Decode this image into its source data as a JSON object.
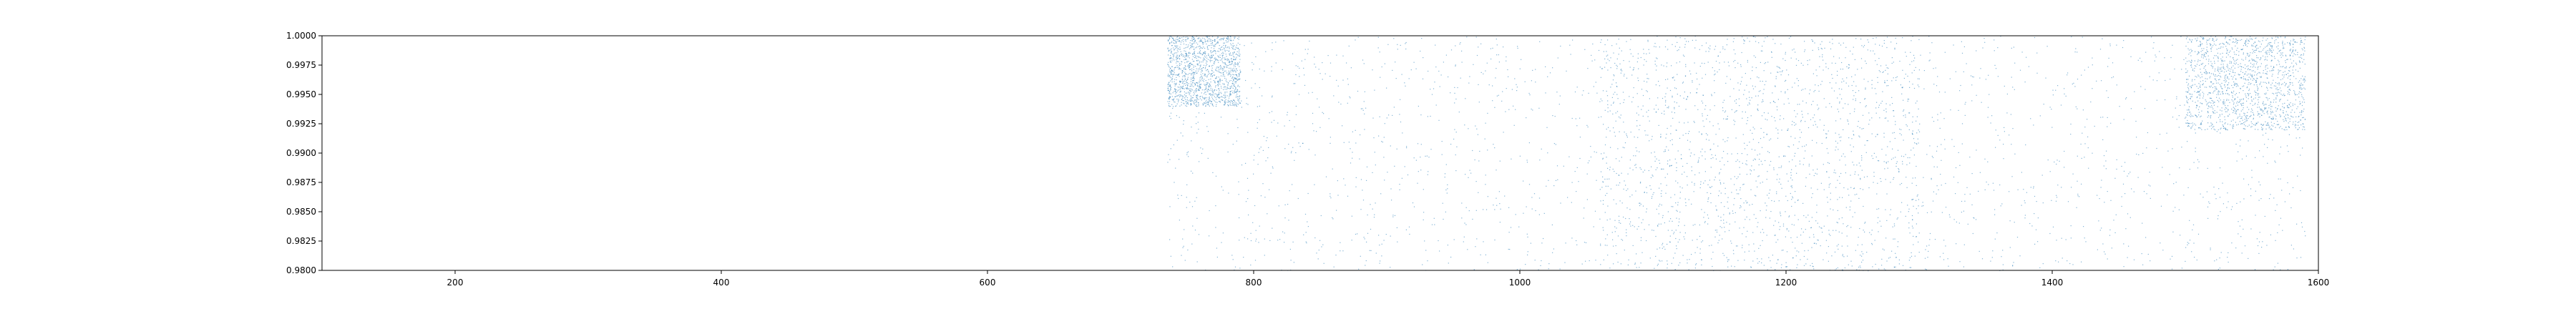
{
  "chart_data": {
    "type": "scatter",
    "title": "",
    "xlabel": "",
    "ylabel": "",
    "xlim": [
      100,
      1600
    ],
    "ylim": [
      0.98,
      1.0
    ],
    "grid": false,
    "legend": "none",
    "x_ticks": [
      "200",
      "400",
      "600",
      "800",
      "1000",
      "1200",
      "1400",
      "1600"
    ],
    "y_ticks": [
      "0.9800",
      "0.9825",
      "0.9850",
      "0.9875",
      "0.9900",
      "0.9925",
      "0.9950",
      "0.9975",
      "1.0000"
    ],
    "colors": {
      "points": "#1f77b4",
      "axes": "#000000",
      "background": "#ffffff"
    },
    "point_distribution": {
      "x_start": 735,
      "x_end": 1590,
      "y_min": 0.98,
      "y_max": 1.0,
      "marker": "dot",
      "dense_regions": [
        {
          "x_from": 735,
          "x_to": 790,
          "y_from": 0.994,
          "y_to": 1.0
        },
        {
          "x_from": 1060,
          "x_to": 1300,
          "y_from": 0.98,
          "y_to": 1.0
        },
        {
          "x_from": 1500,
          "x_to": 1590,
          "y_from": 0.992,
          "y_to": 1.0
        }
      ]
    }
  }
}
